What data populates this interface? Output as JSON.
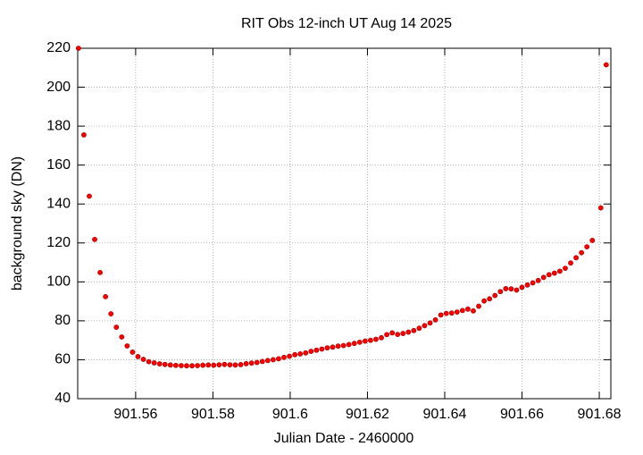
{
  "chart_data": {
    "type": "scatter",
    "title": "RIT Obs 12-inch UT Aug 14 2025",
    "xlabel": "Julian Date - 2460000",
    "ylabel": "background sky (DN)",
    "xlim": [
      901.545,
      901.683
    ],
    "ylim": [
      40,
      220
    ],
    "xticks": [
      901.56,
      901.58,
      901.6,
      901.62,
      901.64,
      901.66,
      901.68
    ],
    "yticks": [
      40,
      60,
      80,
      100,
      120,
      140,
      160,
      180,
      200,
      220
    ],
    "grid": true,
    "x": [
      901.5452,
      901.5466,
      901.548,
      901.5494,
      901.5508,
      901.5522,
      901.5536,
      901.555,
      901.5564,
      901.5578,
      901.5592,
      901.5606,
      901.562,
      901.5634,
      901.5648,
      901.5662,
      901.5676,
      901.569,
      901.5704,
      901.5718,
      901.5732,
      901.5746,
      901.576,
      901.5774,
      901.5788,
      901.5802,
      901.5816,
      901.583,
      901.5844,
      901.5858,
      901.5872,
      901.5886,
      901.59,
      901.5914,
      901.5928,
      901.5942,
      901.5956,
      901.597,
      901.5984,
      901.5998,
      901.6012,
      901.6026,
      901.604,
      901.6054,
      901.6068,
      901.6082,
      901.6096,
      901.611,
      901.6124,
      901.6138,
      901.6152,
      901.6166,
      901.618,
      901.6194,
      901.6208,
      901.6222,
      901.6236,
      901.625,
      901.6264,
      901.6278,
      901.6292,
      901.6306,
      901.632,
      901.6334,
      901.6348,
      901.6362,
      901.6376,
      901.639,
      901.6404,
      901.6418,
      901.6432,
      901.6446,
      901.646,
      901.6474,
      901.6488,
      901.6502,
      901.6516,
      901.653,
      901.6544,
      901.6558,
      901.6572,
      901.6586,
      901.66,
      901.6614,
      901.6628,
      901.6642,
      901.6656,
      901.667,
      901.6684,
      901.6698,
      901.6712,
      901.6726,
      901.674,
      901.6754,
      901.6768,
      901.6782,
      901.6804,
      901.6818
    ],
    "series": [
      {
        "color": "#ff0000",
        "values": [
          220,
          175.5,
          144,
          121.8,
          104.8,
          92.4,
          83.6,
          76.7,
          71.7,
          67.1,
          63.9,
          61.6,
          60.2,
          59,
          58.4,
          57.9,
          57.6,
          57.3,
          57.1,
          57,
          56.9,
          56.9,
          57,
          57.2,
          57.3,
          57.2,
          57.4,
          57.6,
          57.4,
          57.3,
          57.5,
          58,
          58.3,
          58.6,
          59.1,
          59.6,
          60,
          60.5,
          61.2,
          61.8,
          62.6,
          63,
          63.5,
          64.3,
          64.9,
          65.5,
          66.1,
          66.5,
          67,
          67.3,
          67.8,
          68.4,
          69,
          69.6,
          70,
          70.5,
          71.3,
          72.9,
          73.8,
          73,
          73.5,
          74.2,
          75,
          76.2,
          77.5,
          78.9,
          80.5,
          83,
          83.8,
          84,
          84.5,
          85.3,
          86,
          85.1,
          87.5,
          90.2,
          91.3,
          93,
          95,
          96.5,
          96.4,
          95.8,
          97.2,
          98.4,
          99.5,
          100.7,
          102.3,
          103.7,
          104.5,
          105.5,
          107,
          109.7,
          112.4,
          115,
          118,
          121.3,
          138,
          211.5
        ]
      }
    ]
  }
}
